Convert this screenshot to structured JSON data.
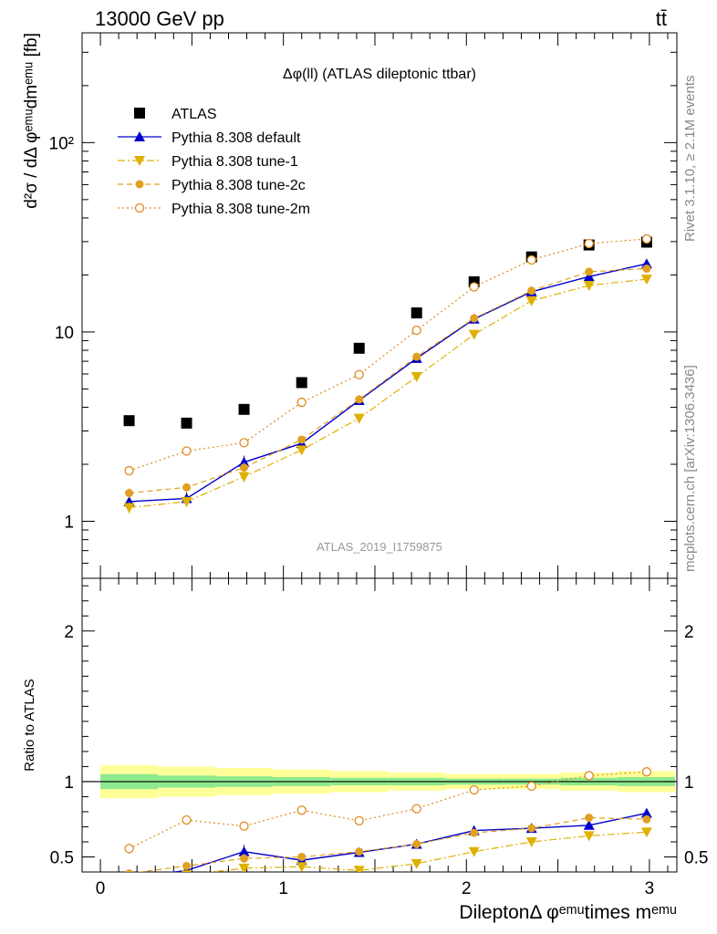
{
  "header": {
    "left": "13000 GeV pp",
    "right": "tt̄"
  },
  "side_labels": {
    "rivet": "Rivet 3.1.10, ≥ 2.1M events",
    "mcplots": "mcplots.cern.ch [arXiv:1306.3436]"
  },
  "watermark": "ATLAS_2019_I1759875",
  "chart_data": [
    {
      "type": "scatter",
      "panel": "main",
      "title": "Δφ(ll) (ATLAS dileptonic ttbar)",
      "ylabel": "d²σ / dΔ φᵉᵐᵘdmᵉᵐᵘ [fb]",
      "y_scale": "log",
      "ylim": [
        0.5,
        380
      ],
      "xlim": [
        -0.1,
        3.15
      ],
      "yticks": [
        {
          "v": 1,
          "label": "1"
        },
        {
          "v": 10,
          "label": "10"
        },
        {
          "v": 100,
          "label": "10²"
        }
      ],
      "legend_position": "top-left",
      "x": [
        0.157,
        0.471,
        0.785,
        1.1,
        1.414,
        1.728,
        2.042,
        2.356,
        2.67,
        2.985
      ],
      "series": [
        {
          "name": "ATLAS",
          "color": "#000000",
          "marker": "square",
          "line": "none",
          "values": [
            3.4,
            3.3,
            3.9,
            5.4,
            8.2,
            12.6,
            18.4,
            24.9,
            28.8,
            29.8
          ]
        },
        {
          "name": "Pythia 8.308 default",
          "color": "#0000cc",
          "marker": "triangle-up",
          "line": "solid",
          "values": [
            1.27,
            1.32,
            2.05,
            2.58,
            4.35,
            7.25,
            11.7,
            16.3,
            19.6,
            22.9
          ],
          "errors": [
            0.1,
            0.1,
            0.17,
            0.14,
            0.17,
            0.2,
            0.25,
            0.3,
            0.3,
            0.3
          ]
        },
        {
          "name": "Pythia 8.308 tune-1",
          "color": "#e0b000",
          "marker": "triangle-down",
          "line": "dashdot",
          "values": [
            1.18,
            1.27,
            1.72,
            2.38,
            3.5,
            5.8,
            9.7,
            14.6,
            17.6,
            19.0
          ],
          "errors": [
            0.08,
            0.08,
            0.12,
            0.12,
            0.12,
            0.15,
            0.2,
            0.25,
            0.3,
            0.3
          ]
        },
        {
          "name": "Pythia 8.308 tune-2c",
          "color": "#e0a020",
          "marker": "circle",
          "line": "dashed",
          "values": [
            1.41,
            1.51,
            1.92,
            2.7,
            4.4,
            7.4,
            11.8,
            16.5,
            20.8,
            21.6
          ],
          "errors": [
            0.08,
            0.08,
            0.12,
            0.12,
            0.12,
            0.15,
            0.2,
            0.25,
            0.3,
            0.3
          ]
        },
        {
          "name": "Pythia 8.308 tune-2m",
          "color": "#e08a20",
          "marker": "circle-open",
          "line": "dotted",
          "values": [
            1.85,
            2.35,
            2.6,
            4.25,
            5.95,
            10.2,
            17.3,
            24.0,
            29.3,
            31.0
          ],
          "errors": [
            0.1,
            0.1,
            0.12,
            0.15,
            0.15,
            0.2,
            0.3,
            0.3,
            0.4,
            0.4
          ]
        }
      ]
    },
    {
      "type": "scatter",
      "panel": "ratio",
      "ylabel": "Ratio to ATLAS",
      "xlabel": "DileptonΔ φᵉᵐᵘtimes mᵉᵐᵘ",
      "ylim": [
        0.4,
        2.35
      ],
      "xlim": [
        -0.1,
        3.15
      ],
      "xticks": [
        {
          "v": 0,
          "label": "0"
        },
        {
          "v": 1,
          "label": "1"
        },
        {
          "v": 2,
          "label": "2"
        },
        {
          "v": 3,
          "label": "3"
        }
      ],
      "yticks": [
        {
          "v": 0.5,
          "label": "0.5"
        },
        {
          "v": 1,
          "label": "1"
        },
        {
          "v": 2,
          "label": "2"
        }
      ],
      "reference": 1,
      "bands": {
        "edges": [
          0,
          0.314,
          0.628,
          0.942,
          1.257,
          1.571,
          1.885,
          2.199,
          2.513,
          2.827,
          3.14
        ],
        "inner": [
          0.05,
          0.04,
          0.035,
          0.03,
          0.025,
          0.025,
          0.02,
          0.02,
          0.025,
          0.03
        ],
        "outer": [
          0.11,
          0.1,
          0.09,
          0.08,
          0.07,
          0.06,
          0.05,
          0.05,
          0.06,
          0.07
        ],
        "inner_color": "#8ee88e",
        "outer_color": "#ffff99"
      },
      "x": [
        0.157,
        0.471,
        0.785,
        1.1,
        1.414,
        1.728,
        2.042,
        2.356,
        2.67,
        2.985
      ],
      "series": [
        {
          "name": "Pythia 8.308 default",
          "color": "#0000cc",
          "marker": "triangle-up",
          "line": "solid",
          "values": [
            0.36,
            0.41,
            0.535,
            0.478,
            0.53,
            0.585,
            0.675,
            0.69,
            0.71,
            0.79
          ],
          "errors": [
            0.03,
            0.03,
            0.045,
            0.03,
            0.025,
            0.02,
            0.02,
            0.015,
            0.015,
            0.015
          ]
        },
        {
          "name": "Pythia 8.308 tune-1",
          "color": "#e0b000",
          "marker": "triangle-down",
          "line": "dashdot",
          "values": [
            0.35,
            0.38,
            0.425,
            0.435,
            0.41,
            0.455,
            0.535,
            0.6,
            0.64,
            0.665
          ],
          "errors": [
            0.025,
            0.025,
            0.03,
            0.025,
            0.02,
            0.02,
            0.015,
            0.012,
            0.012,
            0.012
          ]
        },
        {
          "name": "Pythia 8.308 tune-2c",
          "color": "#e0a020",
          "marker": "circle",
          "line": "dashed",
          "values": [
            0.39,
            0.44,
            0.49,
            0.5,
            0.535,
            0.585,
            0.66,
            0.69,
            0.76,
            0.75
          ],
          "errors": [
            0.025,
            0.025,
            0.03,
            0.025,
            0.02,
            0.02,
            0.015,
            0.012,
            0.012,
            0.012
          ]
        },
        {
          "name": "Pythia 8.308 tune-2m",
          "color": "#e08a20",
          "marker": "circle-open",
          "line": "dotted",
          "values": [
            0.555,
            0.745,
            0.705,
            0.81,
            0.74,
            0.82,
            0.945,
            0.97,
            1.04,
            1.065
          ],
          "errors": [
            0.035,
            0.03,
            0.03,
            0.025,
            0.02,
            0.02,
            0.015,
            0.012,
            0.012,
            0.012
          ]
        }
      ]
    }
  ]
}
